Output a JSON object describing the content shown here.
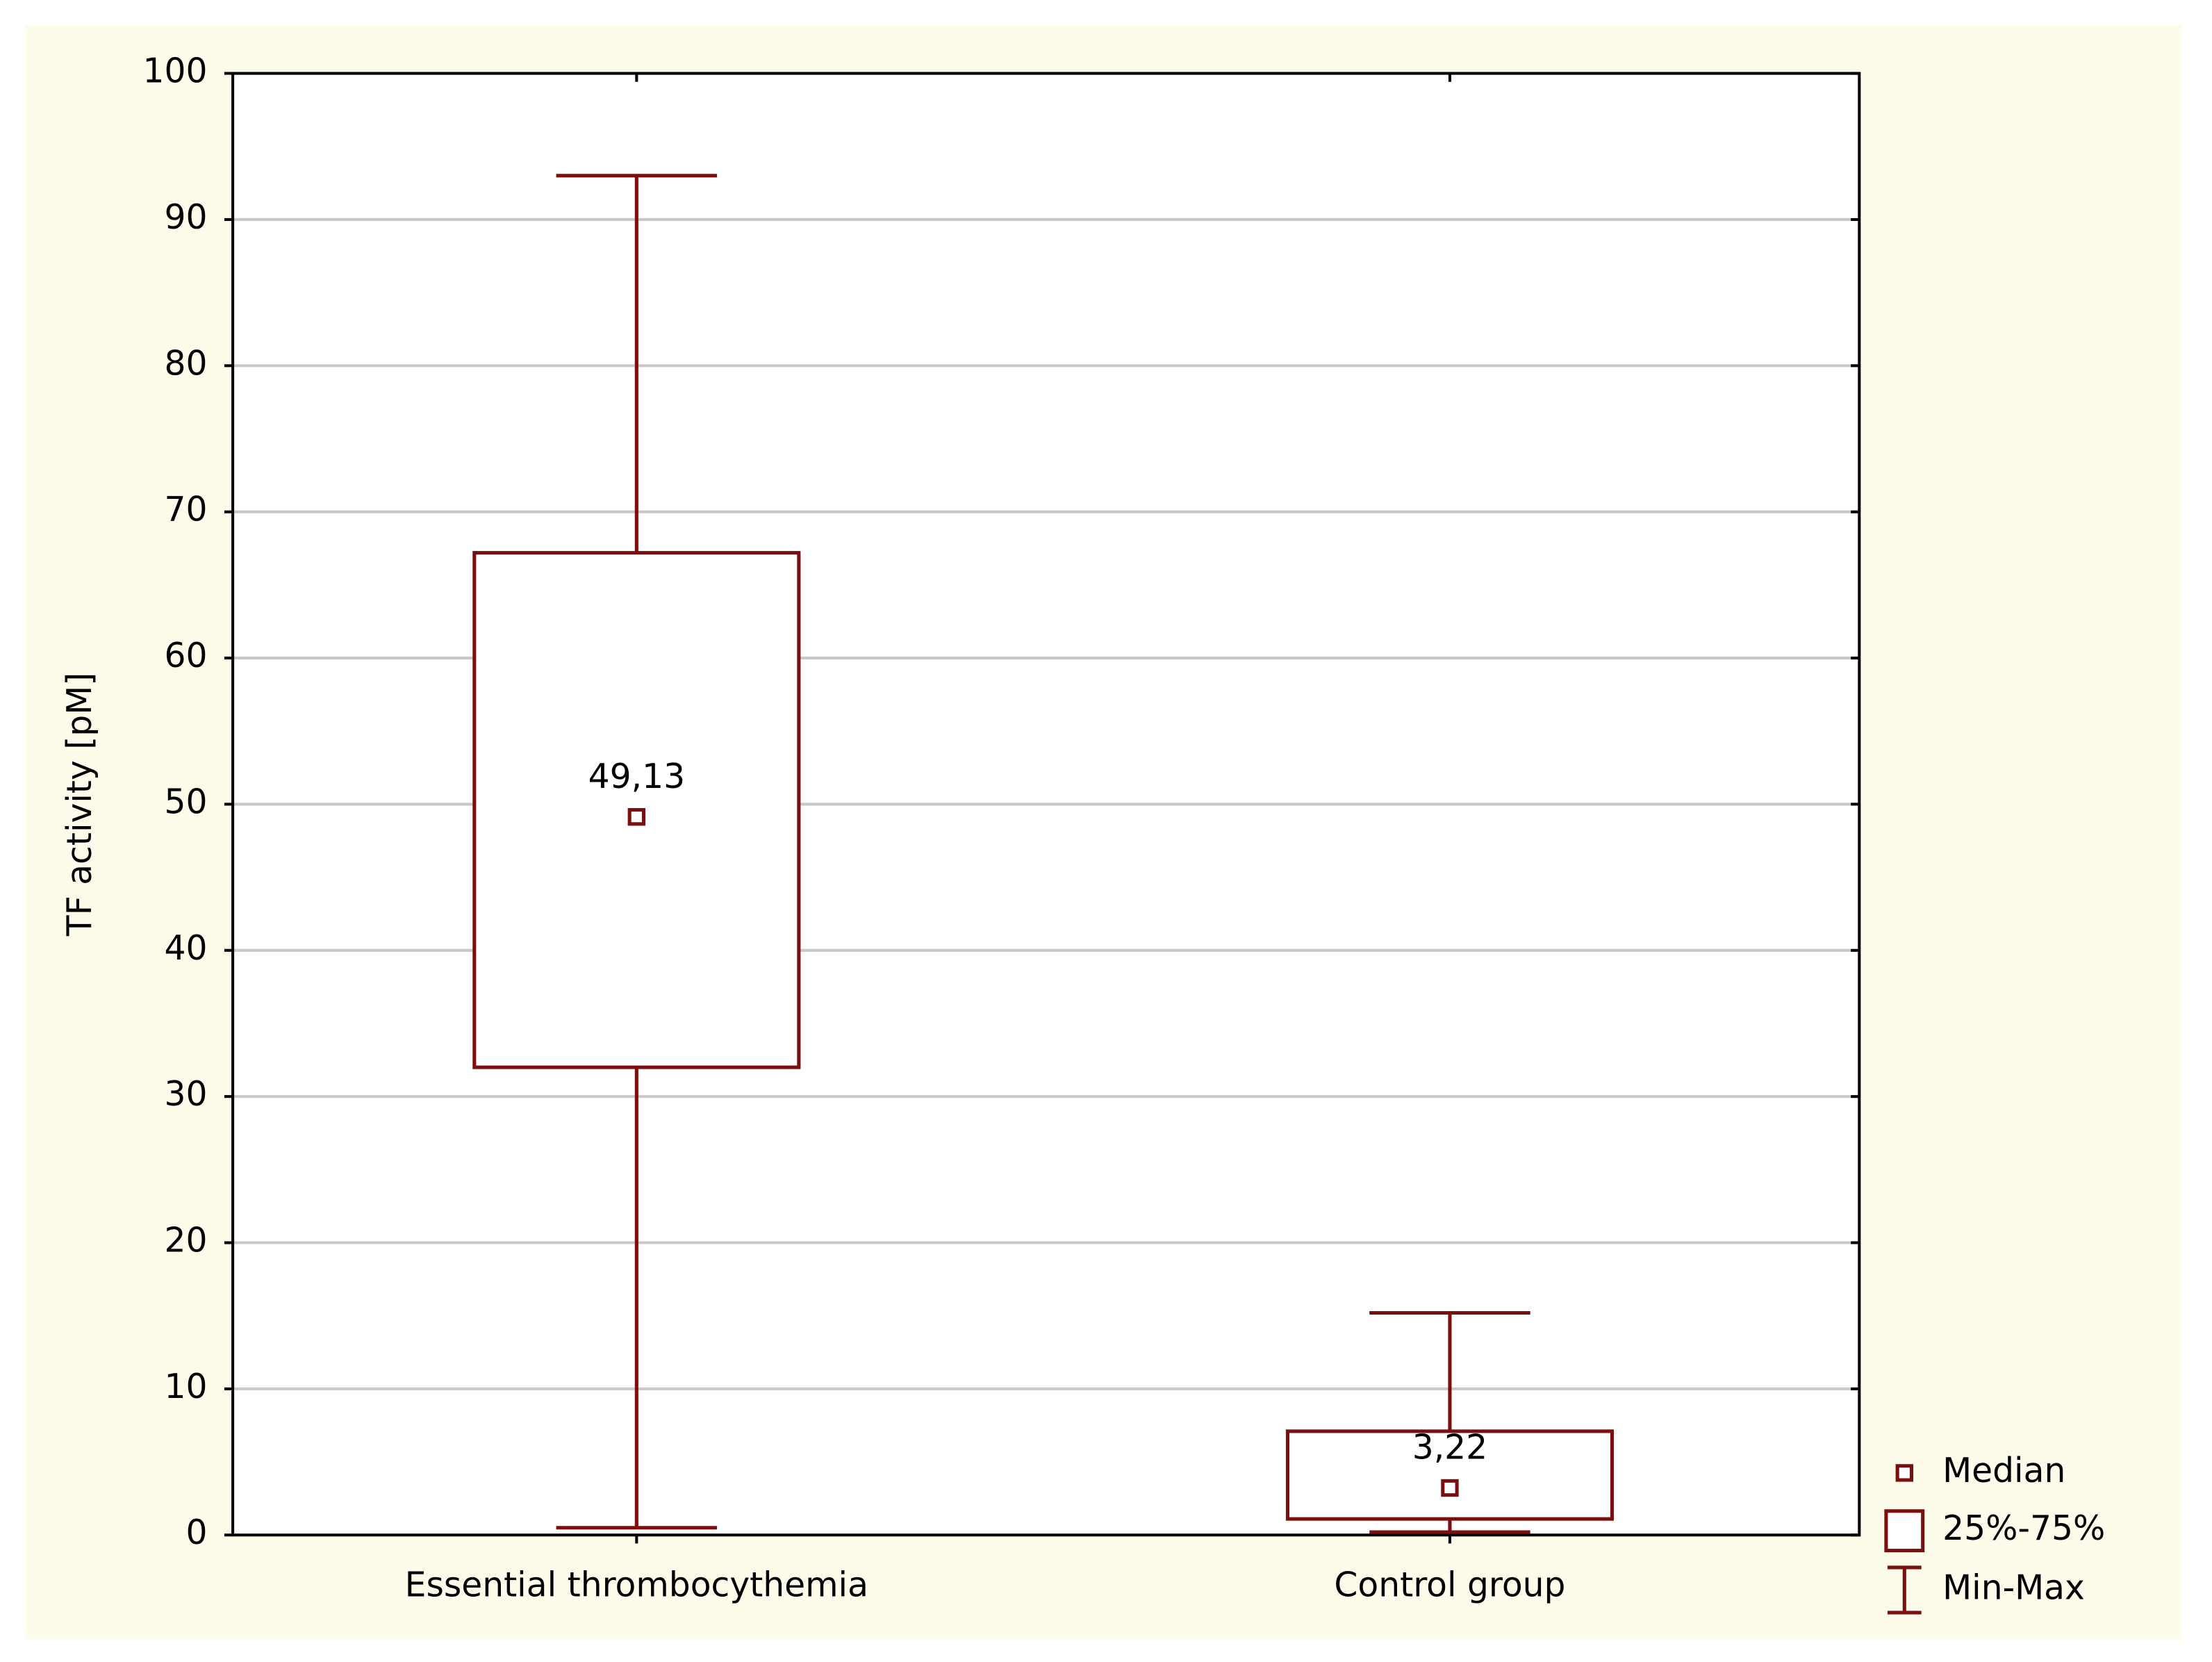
{
  "chart_data": {
    "type": "boxplot",
    "y_label": "TF activity [pM]",
    "categories": [
      "Essential thrombocythemia",
      "Control group"
    ],
    "boxes": [
      {
        "min": 0.5,
        "q1": 32,
        "median": 49.13,
        "value_label": "49,13",
        "q3": 67.2,
        "max": 93
      },
      {
        "min": 0.2,
        "q1": 1.1,
        "median": 3.22,
        "value_label": "3,22",
        "q3": 7.1,
        "max": 15.2
      }
    ],
    "color": "#7b0f0f",
    "ylim": [
      0,
      100
    ],
    "yticks": [
      0,
      10,
      20,
      30,
      40,
      50,
      60,
      70,
      80,
      90,
      100
    ],
    "grid": true,
    "legend": [
      "Median",
      "25%-75%",
      "Min-Max"
    ],
    "legend_position": "right"
  }
}
